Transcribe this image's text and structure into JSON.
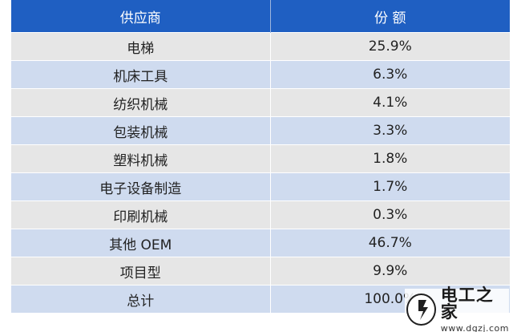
{
  "table": {
    "headers": [
      "供应商",
      "份 额"
    ],
    "rows": [
      {
        "supplier": "电梯",
        "share": "25.9%"
      },
      {
        "supplier": "机床工具",
        "share": "6.3%"
      },
      {
        "supplier": "纺织机械",
        "share": "4.1%"
      },
      {
        "supplier": "包装机械",
        "share": "3.3%"
      },
      {
        "supplier": "塑料机械",
        "share": "1.8%"
      },
      {
        "supplier": "电子设备制造",
        "share": "1.7%"
      },
      {
        "supplier": "印刷机械",
        "share": "0.3%"
      },
      {
        "supplier": "其他 OEM",
        "share": "46.7%"
      },
      {
        "supplier": "项目型",
        "share": "9.9%"
      },
      {
        "supplier": "总计",
        "share": "100.0%"
      }
    ]
  },
  "watermark": {
    "title": "电工之家",
    "url": "www.dgzj.com"
  },
  "colors": {
    "header_bg": "#1f5fc2",
    "row_gray": "#e6e6e6",
    "row_blue": "#cfdbef"
  }
}
